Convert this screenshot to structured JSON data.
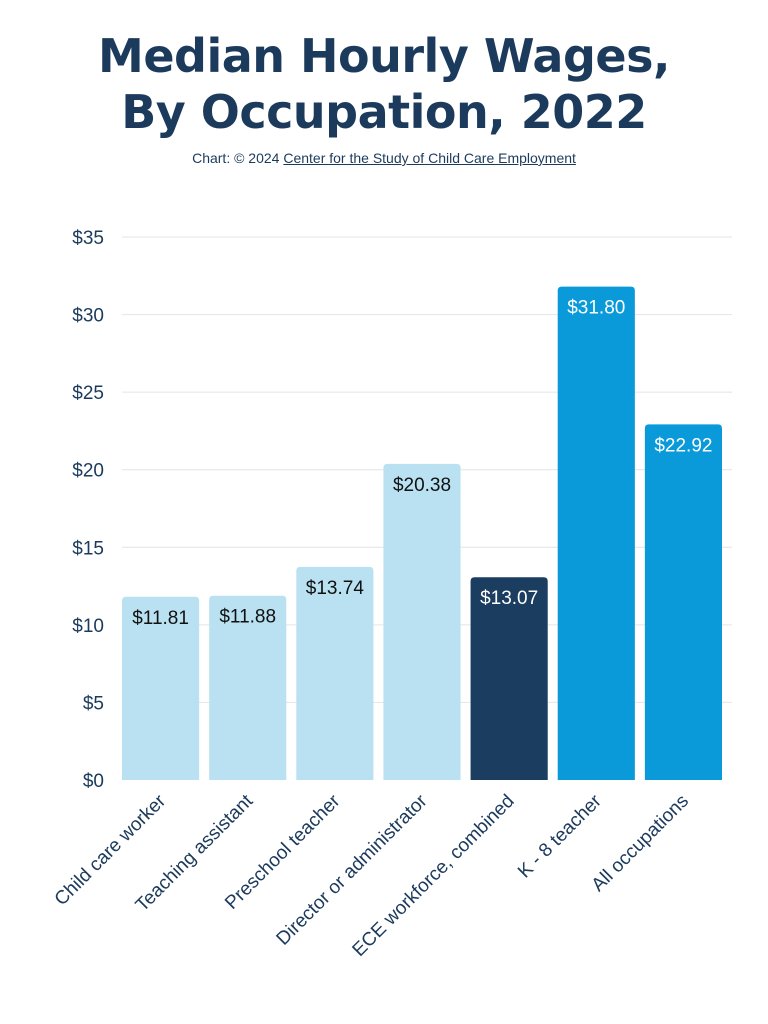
{
  "title": {
    "line1": "Median Hourly Wages,",
    "line2": "By Occupation, 2022"
  },
  "credit": {
    "prefix": "Chart: © 2024",
    "link_text": "Center for the Study of Child Care Employment"
  },
  "colors": {
    "light": "#b9e1f2",
    "dark": "#1b3d60",
    "bright": "#0a9ad9",
    "axis_text": "#1b3a5c",
    "grid": "#e4e4e4"
  },
  "chart_data": {
    "type": "bar",
    "title": "Median Hourly Wages, By Occupation, 2022",
    "xlabel": "",
    "ylabel": "",
    "ylim": [
      0,
      35
    ],
    "yticks": [
      0,
      5,
      10,
      15,
      20,
      25,
      30,
      35
    ],
    "ytick_labels": [
      "$0",
      "$5",
      "$10",
      "$15",
      "$20",
      "$25",
      "$30",
      "$35"
    ],
    "grid": true,
    "categories": [
      "Child care worker",
      "Teaching assistant",
      "Preschool teacher",
      "Director or administrator",
      "ECE workforce, combined",
      "K - 8 teacher",
      "All occupations"
    ],
    "values": [
      11.81,
      11.88,
      13.74,
      20.38,
      13.07,
      31.8,
      22.92
    ],
    "data_labels": [
      "$11.81",
      "$11.88",
      "$13.74",
      "$20.38",
      "$13.07",
      "$31.80",
      "$22.92"
    ],
    "bar_color_keys": [
      "light",
      "light",
      "light",
      "light",
      "dark",
      "bright",
      "bright"
    ]
  }
}
